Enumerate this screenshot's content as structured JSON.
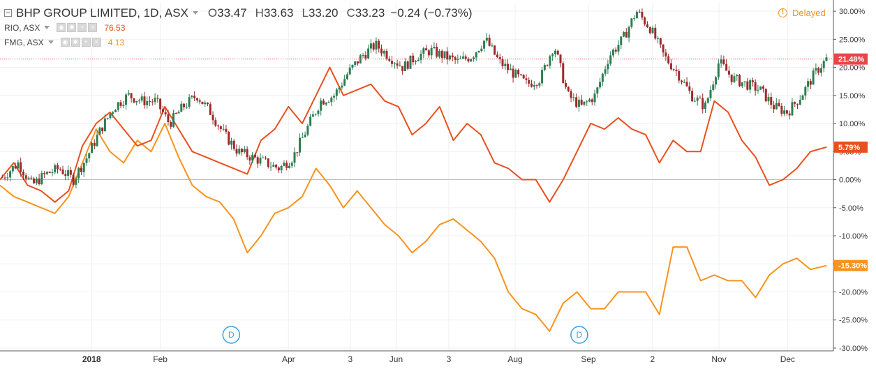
{
  "header": {
    "symbol_title": "BHP GROUP LIMITED, 1D, ASX",
    "ohlc": [
      {
        "label": "O",
        "value": "33.47"
      },
      {
        "label": "H",
        "value": "33.63"
      },
      {
        "label": "L",
        "value": "33.20"
      },
      {
        "label": "C",
        "value": "33.23"
      }
    ],
    "change": "−0.24 (−0.73%)",
    "delayed_label": "Delayed"
  },
  "compare": [
    {
      "symbol": "RIO, ASX",
      "last": "76.53",
      "color": "#e8501e"
    },
    {
      "symbol": "FMG, ASX",
      "last": "4.13",
      "color": "#f7931e"
    }
  ],
  "colors": {
    "up": "#26a69a",
    "down": "#b03a3a",
    "candle_up": "#2e7d52",
    "candle_down": "#9e2a2a",
    "rio": "#e8501e",
    "fmg": "#f7931e",
    "bhp_badge": "#e8464a"
  },
  "chart_data": {
    "type": "line",
    "y_axis": {
      "unit": "%",
      "ticks": [
        "30.00%",
        "25.00%",
        "20.00%",
        "15.00%",
        "10.00%",
        "5.00%",
        "0.00%",
        "-5.00%",
        "-10.00%",
        "-15.00%",
        "-20.00%",
        "-25.00%",
        "-30.00%"
      ],
      "tick_values": [
        30,
        25,
        20,
        15,
        10,
        5,
        0,
        -5,
        -10,
        -15,
        -20,
        -25,
        -30
      ],
      "range": [
        -30.5,
        31.5
      ],
      "baseline": 0
    },
    "x_axis": {
      "ticks": [
        "2018",
        "Feb",
        "Apr",
        "3",
        "Jun",
        "3",
        "Aug",
        "Sep",
        "2",
        "Nov",
        "Dec"
      ],
      "tick_positions_day": [
        12,
        42,
        98,
        125,
        145,
        168,
        197,
        229,
        257,
        286,
        316
      ],
      "day_range": [
        -28,
        336
      ]
    },
    "last_value_labels": [
      {
        "series": "BHP",
        "text": "21.48%",
        "value": 21.48
      },
      {
        "series": "RIO",
        "text": "5.79%",
        "value": 5.79
      },
      {
        "series": "FMG",
        "text": "-15.30%",
        "value": -15.3
      }
    ],
    "event_markers": [
      {
        "label": "D",
        "day": 73
      },
      {
        "label": "D",
        "day": 225
      }
    ],
    "series": [
      {
        "name": "BHP GROUP LIMITED",
        "style": "candlestick",
        "x": [
          -28,
          -20,
          -14,
          -8,
          -2,
          4,
          10,
          16,
          22,
          28,
          34,
          40,
          46,
          52,
          58,
          64,
          70,
          76,
          82,
          88,
          94,
          100,
          106,
          112,
          118,
          124,
          130,
          136,
          142,
          148,
          154,
          160,
          166,
          172,
          178,
          184,
          190,
          196,
          202,
          208,
          214,
          220,
          226,
          232,
          238,
          244,
          250,
          256,
          262,
          268,
          274,
          280,
          286,
          292,
          298,
          304,
          310,
          316,
          322,
          328,
          333
        ],
        "values": [
          0,
          3,
          -1,
          1,
          2,
          0,
          4,
          9,
          13,
          15,
          14,
          14,
          10,
          13,
          15,
          12,
          8,
          5,
          4,
          3,
          2,
          4,
          9,
          14,
          15,
          19,
          22,
          24,
          22,
          20,
          22,
          23,
          22,
          21,
          22,
          25,
          21,
          19,
          17,
          18,
          24,
          15,
          13,
          15,
          22,
          25,
          30,
          27,
          22,
          19,
          15,
          13,
          21,
          18,
          17,
          16,
          13,
          12,
          15,
          19,
          21.48
        ]
      },
      {
        "name": "RIO, ASX",
        "style": "line",
        "x": [
          -28,
          -22,
          -16,
          -10,
          -4,
          2,
          8,
          14,
          20,
          26,
          32,
          38,
          44,
          50,
          56,
          62,
          68,
          74,
          80,
          86,
          92,
          98,
          104,
          110,
          116,
          122,
          128,
          134,
          140,
          146,
          152,
          158,
          164,
          170,
          176,
          182,
          188,
          194,
          200,
          206,
          212,
          218,
          224,
          230,
          236,
          242,
          248,
          254,
          260,
          266,
          272,
          278,
          284,
          290,
          296,
          302,
          308,
          314,
          320,
          326,
          333
        ],
        "values": [
          0,
          3,
          -1,
          -2,
          -4,
          -2,
          6,
          10,
          12,
          9,
          6,
          7,
          13,
          9,
          5,
          4,
          3,
          2,
          1,
          7,
          9,
          13,
          10,
          15,
          20,
          15,
          16,
          17,
          14,
          13,
          8,
          10,
          13,
          7,
          10,
          8,
          3,
          2,
          0,
          0,
          -4,
          0,
          5,
          10,
          9,
          11,
          9,
          8,
          3,
          7,
          5,
          5,
          14,
          12,
          7,
          4,
          -1,
          0,
          2,
          5,
          5.79
        ]
      },
      {
        "name": "FMG, ASX",
        "style": "line",
        "x": [
          -28,
          -22,
          -16,
          -10,
          -4,
          2,
          8,
          14,
          20,
          26,
          32,
          38,
          44,
          50,
          56,
          62,
          68,
          74,
          80,
          86,
          92,
          98,
          104,
          110,
          116,
          122,
          128,
          134,
          140,
          146,
          152,
          158,
          164,
          170,
          176,
          182,
          188,
          194,
          200,
          206,
          212,
          218,
          224,
          230,
          236,
          242,
          248,
          254,
          260,
          266,
          272,
          278,
          284,
          290,
          296,
          302,
          308,
          314,
          320,
          326,
          333
        ],
        "values": [
          -1,
          -3,
          -4,
          -5,
          -6,
          -3,
          3,
          9,
          5,
          3,
          7,
          5,
          10,
          4,
          -1,
          -3,
          -4,
          -7,
          -13,
          -10,
          -6,
          -5,
          -3,
          2,
          -1,
          -5,
          -2,
          -5,
          -8,
          -10,
          -13,
          -11,
          -8,
          -7,
          -9,
          -11,
          -14,
          -20,
          -23,
          -24,
          -27,
          -22,
          -20,
          -23,
          -23,
          -20,
          -20,
          -20,
          -24,
          -12,
          -12,
          -18,
          -17,
          -18,
          -18,
          -21,
          -17,
          -15,
          -14,
          -16,
          -15.3
        ]
      }
    ]
  }
}
